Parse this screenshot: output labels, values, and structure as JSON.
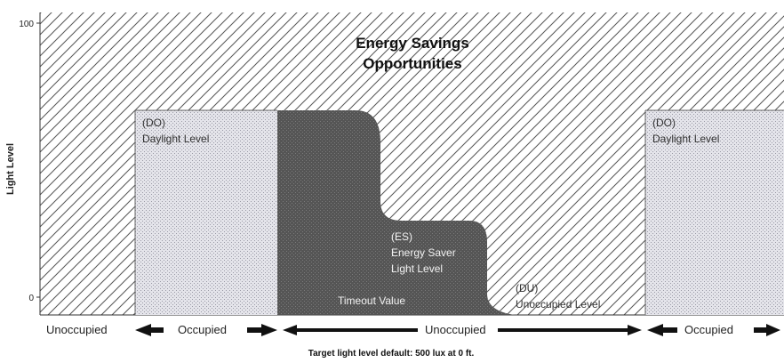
{
  "axis": {
    "y_label": "Light Level",
    "y_max_label": "100",
    "y_min_label": "0"
  },
  "title": {
    "line1": "Energy Savings",
    "line2": "Opportunities"
  },
  "regions": {
    "daylight_left": {
      "code": "(DO)",
      "label": "Daylight Level"
    },
    "daylight_right": {
      "code": "(DO)",
      "label": "Daylight Level"
    },
    "energy_saver": {
      "code": "(ES)",
      "label_line1": "Energy Saver",
      "label_line2": "Light Level"
    },
    "timeout": {
      "label": "Timeout Value"
    },
    "unoccupied_level": {
      "code": "(DU)",
      "label": "Unoccupied Level"
    }
  },
  "timeline": {
    "spans": [
      {
        "label": "Unoccupied"
      },
      {
        "label": "Occupied"
      },
      {
        "label": "Unoccupied"
      },
      {
        "label": "Occupied"
      }
    ]
  },
  "footer": {
    "note": "Target light level default: 500 lux at 0 ft."
  },
  "colors": {
    "background": "#ffffff",
    "hatch_line": "#555555",
    "daylight_fill": "#e4e4ea",
    "daylight_dots": "#9a9aa6",
    "energy_fill": "#555555",
    "energy_dots": "#7a7a7a",
    "arrow": "#111111"
  }
}
